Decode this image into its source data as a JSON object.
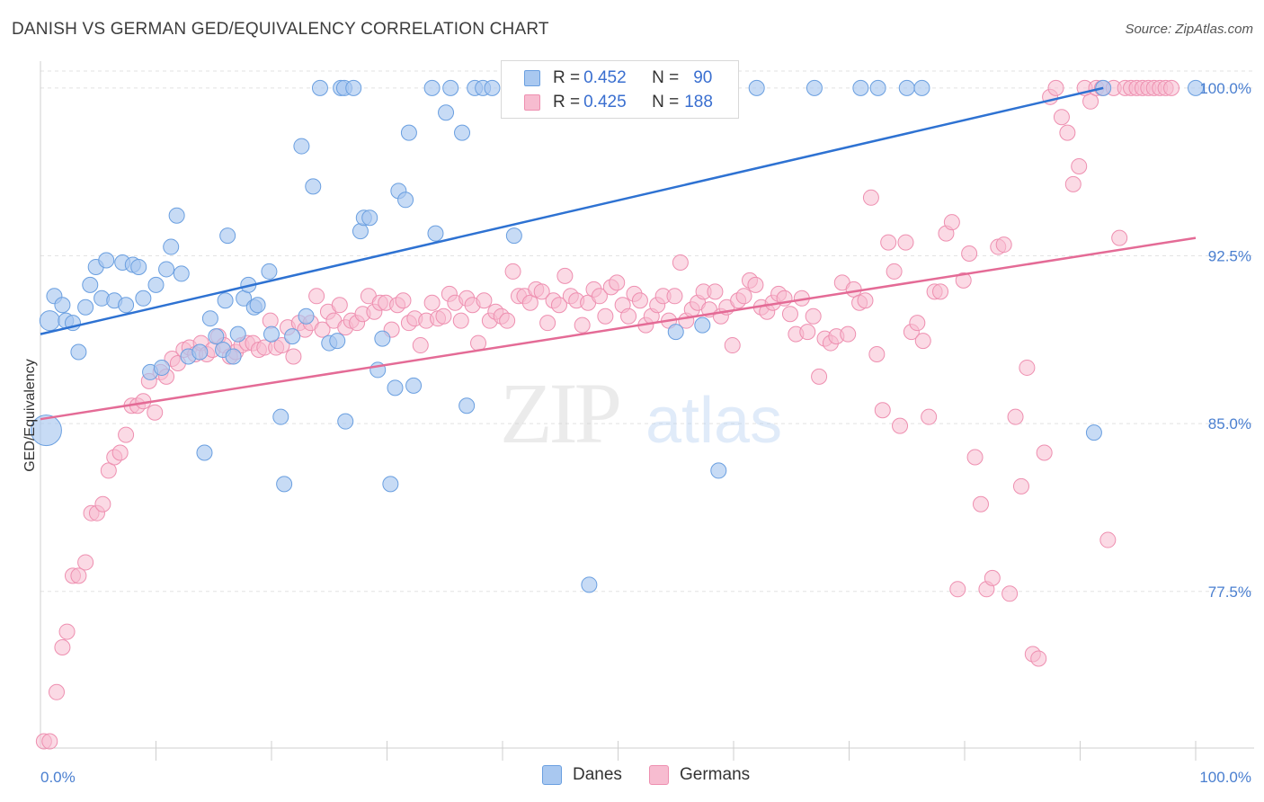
{
  "title": "DANISH VS GERMAN GED/EQUIVALENCY CORRELATION CHART",
  "source": "Source: ZipAtlas.com",
  "watermark": {
    "zip": "ZIP",
    "atlas": "atlas"
  },
  "legend_top": {
    "row1": {
      "r_label": "R = ",
      "r_value": "0.452",
      "n_label": "N = ",
      "n_value": "90"
    },
    "row2": {
      "r_label": "R = ",
      "r_value": "0.425",
      "n_label": "N = ",
      "n_value": "188"
    }
  },
  "legend_bottom": {
    "danes": "Danes",
    "germans": "Germans"
  },
  "colors": {
    "danes_fill": "#a9c8f0",
    "danes_stroke": "#6a9fe0",
    "danes_line": "#2e72d2",
    "germans_fill": "#f7bcd0",
    "germans_stroke": "#ee8fb0",
    "germans_line": "#e46b96",
    "grid": "#e2e2e2",
    "tick_text": "#4a7fd0"
  },
  "chart_data": {
    "type": "scatter",
    "title": "DANISH VS GERMAN GED/EQUIVALENCY CORRELATION CHART",
    "xlabel": "",
    "ylabel": "GED/Equivalency",
    "xlim": [
      0,
      100
    ],
    "ylim": [
      70.5,
      101.2
    ],
    "x_tick_labels": [
      "0.0%",
      "100.0%"
    ],
    "y_ticks": [
      77.5,
      85.0,
      92.5,
      100.0
    ],
    "y_tick_labels": [
      "77.5%",
      "85.0%",
      "92.5%",
      "100.0%"
    ],
    "grid": true,
    "legend": "top-center",
    "series": [
      {
        "name": "Danes",
        "R": 0.452,
        "N": 90,
        "trend": {
          "x": [
            0,
            92
          ],
          "y": [
            89.0,
            100.0
          ]
        },
        "points": [
          [
            0.5,
            84.7
          ],
          [
            0.8,
            89.6
          ],
          [
            1.2,
            90.7
          ],
          [
            1.9,
            90.3
          ],
          [
            2.2,
            89.6
          ],
          [
            2.8,
            89.5
          ],
          [
            3.3,
            88.2
          ],
          [
            3.9,
            90.2
          ],
          [
            4.3,
            91.2
          ],
          [
            4.8,
            92.0
          ],
          [
            5.3,
            90.6
          ],
          [
            5.7,
            92.3
          ],
          [
            6.4,
            90.5
          ],
          [
            7.1,
            92.2
          ],
          [
            7.4,
            90.3
          ],
          [
            8.0,
            92.1
          ],
          [
            8.5,
            92.0
          ],
          [
            8.9,
            90.6
          ],
          [
            9.5,
            87.3
          ],
          [
            10.0,
            91.2
          ],
          [
            10.5,
            87.5
          ],
          [
            10.9,
            91.9
          ],
          [
            11.3,
            92.9
          ],
          [
            11.8,
            94.3
          ],
          [
            12.2,
            91.7
          ],
          [
            12.8,
            88.0
          ],
          [
            13.8,
            88.2
          ],
          [
            14.2,
            83.7
          ],
          [
            14.7,
            89.7
          ],
          [
            15.2,
            88.9
          ],
          [
            15.8,
            88.3
          ],
          [
            16.0,
            90.5
          ],
          [
            16.2,
            93.4
          ],
          [
            16.7,
            88.0
          ],
          [
            17.1,
            89.0
          ],
          [
            17.6,
            90.6
          ],
          [
            18.0,
            91.2
          ],
          [
            18.5,
            90.2
          ],
          [
            18.8,
            90.3
          ],
          [
            19.8,
            91.8
          ],
          [
            20.0,
            89.0
          ],
          [
            20.8,
            85.3
          ],
          [
            21.1,
            82.3
          ],
          [
            21.8,
            88.9
          ],
          [
            22.6,
            97.4
          ],
          [
            23.0,
            89.8
          ],
          [
            23.6,
            95.6
          ],
          [
            24.2,
            100.0
          ],
          [
            25.0,
            88.6
          ],
          [
            25.7,
            88.7
          ],
          [
            26.0,
            100.0
          ],
          [
            26.3,
            100.0
          ],
          [
            26.4,
            85.1
          ],
          [
            27.1,
            100.0
          ],
          [
            27.7,
            93.6
          ],
          [
            28.0,
            94.2
          ],
          [
            28.5,
            94.2
          ],
          [
            29.2,
            87.4
          ],
          [
            29.6,
            88.8
          ],
          [
            30.3,
            82.3
          ],
          [
            30.7,
            86.6
          ],
          [
            31.0,
            95.4
          ],
          [
            31.6,
            95.0
          ],
          [
            31.9,
            98.0
          ],
          [
            32.3,
            86.7
          ],
          [
            33.9,
            100.0
          ],
          [
            34.2,
            93.5
          ],
          [
            35.1,
            98.9
          ],
          [
            35.5,
            100.0
          ],
          [
            36.5,
            98.0
          ],
          [
            36.9,
            85.8
          ],
          [
            37.6,
            100.0
          ],
          [
            38.3,
            100.0
          ],
          [
            39.1,
            100.0
          ],
          [
            41.0,
            93.4
          ],
          [
            41.8,
            100.0
          ],
          [
            44.9,
            100.0
          ],
          [
            47.5,
            77.8
          ],
          [
            48.6,
            100.0
          ],
          [
            49.0,
            100.0
          ],
          [
            55.0,
            89.1
          ],
          [
            57.3,
            89.4
          ],
          [
            58.7,
            82.9
          ],
          [
            62.0,
            100.0
          ],
          [
            67.0,
            100.0
          ],
          [
            71.0,
            100.0
          ],
          [
            72.5,
            100.0
          ],
          [
            75.0,
            100.0
          ],
          [
            76.3,
            100.0
          ],
          [
            91.2,
            84.6
          ],
          [
            92.0,
            100.0
          ],
          [
            100.0,
            100.0
          ]
        ]
      },
      {
        "name": "Germans",
        "R": 0.425,
        "N": 188,
        "trend": {
          "x": [
            0,
            100
          ],
          "y": [
            85.2,
            93.3
          ]
        },
        "points": [
          [
            0.3,
            70.8
          ],
          [
            0.8,
            70.8
          ],
          [
            1.4,
            73.0
          ],
          [
            1.9,
            75.0
          ],
          [
            2.3,
            75.7
          ],
          [
            2.8,
            78.2
          ],
          [
            3.3,
            78.2
          ],
          [
            3.9,
            78.8
          ],
          [
            4.4,
            81.0
          ],
          [
            4.9,
            81.0
          ],
          [
            5.4,
            81.4
          ],
          [
            5.9,
            82.9
          ],
          [
            6.4,
            83.5
          ],
          [
            6.9,
            83.7
          ],
          [
            7.4,
            84.5
          ],
          [
            7.9,
            85.8
          ],
          [
            8.4,
            85.8
          ],
          [
            8.9,
            86.0
          ],
          [
            9.4,
            86.9
          ],
          [
            9.9,
            85.5
          ],
          [
            10.4,
            87.3
          ],
          [
            10.9,
            87.1
          ],
          [
            11.4,
            87.9
          ],
          [
            11.9,
            87.7
          ],
          [
            12.4,
            88.3
          ],
          [
            12.9,
            88.4
          ],
          [
            13.4,
            88.1
          ],
          [
            13.9,
            88.6
          ],
          [
            14.4,
            88.1
          ],
          [
            14.9,
            88.3
          ],
          [
            15.4,
            88.9
          ],
          [
            15.9,
            88.5
          ],
          [
            16.4,
            88.0
          ],
          [
            16.9,
            88.2
          ],
          [
            17.4,
            88.5
          ],
          [
            17.9,
            88.6
          ],
          [
            18.4,
            88.6
          ],
          [
            18.9,
            88.3
          ],
          [
            19.4,
            88.4
          ],
          [
            19.9,
            89.6
          ],
          [
            20.4,
            88.4
          ],
          [
            20.9,
            88.5
          ],
          [
            21.4,
            89.3
          ],
          [
            21.9,
            88.0
          ],
          [
            22.4,
            89.5
          ],
          [
            22.9,
            89.2
          ],
          [
            23.4,
            89.5
          ],
          [
            23.9,
            90.7
          ],
          [
            24.4,
            89.2
          ],
          [
            24.9,
            90.0
          ],
          [
            25.4,
            89.6
          ],
          [
            25.9,
            90.3
          ],
          [
            26.4,
            89.3
          ],
          [
            26.9,
            89.6
          ],
          [
            27.4,
            89.5
          ],
          [
            27.9,
            89.9
          ],
          [
            28.4,
            90.7
          ],
          [
            28.9,
            90.0
          ],
          [
            29.4,
            90.4
          ],
          [
            29.9,
            90.4
          ],
          [
            30.4,
            89.2
          ],
          [
            30.9,
            90.3
          ],
          [
            31.4,
            90.5
          ],
          [
            31.9,
            89.5
          ],
          [
            32.4,
            89.7
          ],
          [
            32.9,
            88.5
          ],
          [
            33.4,
            89.6
          ],
          [
            33.9,
            90.4
          ],
          [
            34.4,
            89.7
          ],
          [
            34.9,
            89.8
          ],
          [
            35.4,
            90.8
          ],
          [
            35.9,
            90.4
          ],
          [
            36.4,
            89.6
          ],
          [
            36.9,
            90.6
          ],
          [
            37.4,
            90.3
          ],
          [
            37.9,
            88.6
          ],
          [
            38.4,
            90.5
          ],
          [
            38.9,
            89.6
          ],
          [
            39.4,
            90.0
          ],
          [
            39.9,
            89.8
          ],
          [
            40.4,
            89.6
          ],
          [
            40.9,
            91.8
          ],
          [
            41.4,
            90.7
          ],
          [
            41.9,
            90.7
          ],
          [
            42.4,
            90.4
          ],
          [
            42.9,
            91.0
          ],
          [
            43.4,
            90.9
          ],
          [
            43.9,
            89.5
          ],
          [
            44.4,
            90.5
          ],
          [
            44.9,
            90.3
          ],
          [
            45.4,
            91.6
          ],
          [
            45.9,
            90.7
          ],
          [
            46.4,
            90.5
          ],
          [
            46.9,
            89.4
          ],
          [
            47.4,
            90.4
          ],
          [
            47.9,
            91.0
          ],
          [
            48.4,
            90.7
          ],
          [
            48.9,
            89.8
          ],
          [
            49.4,
            91.1
          ],
          [
            49.9,
            91.3
          ],
          [
            50.4,
            90.3
          ],
          [
            50.9,
            89.8
          ],
          [
            51.4,
            90.8
          ],
          [
            51.9,
            90.5
          ],
          [
            52.4,
            89.4
          ],
          [
            52.9,
            89.8
          ],
          [
            53.4,
            90.3
          ],
          [
            53.9,
            90.7
          ],
          [
            54.4,
            89.6
          ],
          [
            54.9,
            90.7
          ],
          [
            55.4,
            92.2
          ],
          [
            55.9,
            89.6
          ],
          [
            56.4,
            90.1
          ],
          [
            56.9,
            90.4
          ],
          [
            57.4,
            90.9
          ],
          [
            57.9,
            90.1
          ],
          [
            58.4,
            90.9
          ],
          [
            58.9,
            89.8
          ],
          [
            59.4,
            90.2
          ],
          [
            59.9,
            88.5
          ],
          [
            60.4,
            90.5
          ],
          [
            60.9,
            90.7
          ],
          [
            61.4,
            91.4
          ],
          [
            61.9,
            91.2
          ],
          [
            62.4,
            90.2
          ],
          [
            62.9,
            90.0
          ],
          [
            63.4,
            90.4
          ],
          [
            63.9,
            90.8
          ],
          [
            64.4,
            90.6
          ],
          [
            64.9,
            89.9
          ],
          [
            65.4,
            89.0
          ],
          [
            65.9,
            90.6
          ],
          [
            66.4,
            89.1
          ],
          [
            66.9,
            89.8
          ],
          [
            67.4,
            87.1
          ],
          [
            67.9,
            88.8
          ],
          [
            68.4,
            88.6
          ],
          [
            68.9,
            88.9
          ],
          [
            69.4,
            91.3
          ],
          [
            69.9,
            89.0
          ],
          [
            70.4,
            91.0
          ],
          [
            70.9,
            90.4
          ],
          [
            71.4,
            90.5
          ],
          [
            71.9,
            95.1
          ],
          [
            72.4,
            88.1
          ],
          [
            72.9,
            85.6
          ],
          [
            73.4,
            93.1
          ],
          [
            73.9,
            91.8
          ],
          [
            74.4,
            84.9
          ],
          [
            74.9,
            93.1
          ],
          [
            75.4,
            89.1
          ],
          [
            75.9,
            89.5
          ],
          [
            76.4,
            88.7
          ],
          [
            76.9,
            85.3
          ],
          [
            77.4,
            90.9
          ],
          [
            77.9,
            90.9
          ],
          [
            78.4,
            93.5
          ],
          [
            78.9,
            94.0
          ],
          [
            79.4,
            77.6
          ],
          [
            79.9,
            91.4
          ],
          [
            80.4,
            92.6
          ],
          [
            80.9,
            83.5
          ],
          [
            81.4,
            81.4
          ],
          [
            81.9,
            77.6
          ],
          [
            82.4,
            78.1
          ],
          [
            82.9,
            92.9
          ],
          [
            83.4,
            93.0
          ],
          [
            83.9,
            77.4
          ],
          [
            84.4,
            85.3
          ],
          [
            84.9,
            82.2
          ],
          [
            85.4,
            87.5
          ],
          [
            85.9,
            74.7
          ],
          [
            86.4,
            74.5
          ],
          [
            86.9,
            83.7
          ],
          [
            87.4,
            99.6
          ],
          [
            87.9,
            100.0
          ],
          [
            88.4,
            98.7
          ],
          [
            88.9,
            98.0
          ],
          [
            89.4,
            95.7
          ],
          [
            89.9,
            96.5
          ],
          [
            90.4,
            100.0
          ],
          [
            90.9,
            99.4
          ],
          [
            91.4,
            100.0
          ],
          [
            91.9,
            100.0
          ],
          [
            92.4,
            79.8
          ],
          [
            92.9,
            100.0
          ],
          [
            93.4,
            93.3
          ],
          [
            93.9,
            100.0
          ],
          [
            94.4,
            100.0
          ],
          [
            94.9,
            100.0
          ],
          [
            95.4,
            100.0
          ],
          [
            95.9,
            100.0
          ],
          [
            96.4,
            100.0
          ],
          [
            96.9,
            100.0
          ],
          [
            97.4,
            100.0
          ],
          [
            97.9,
            100.0
          ]
        ]
      }
    ]
  }
}
